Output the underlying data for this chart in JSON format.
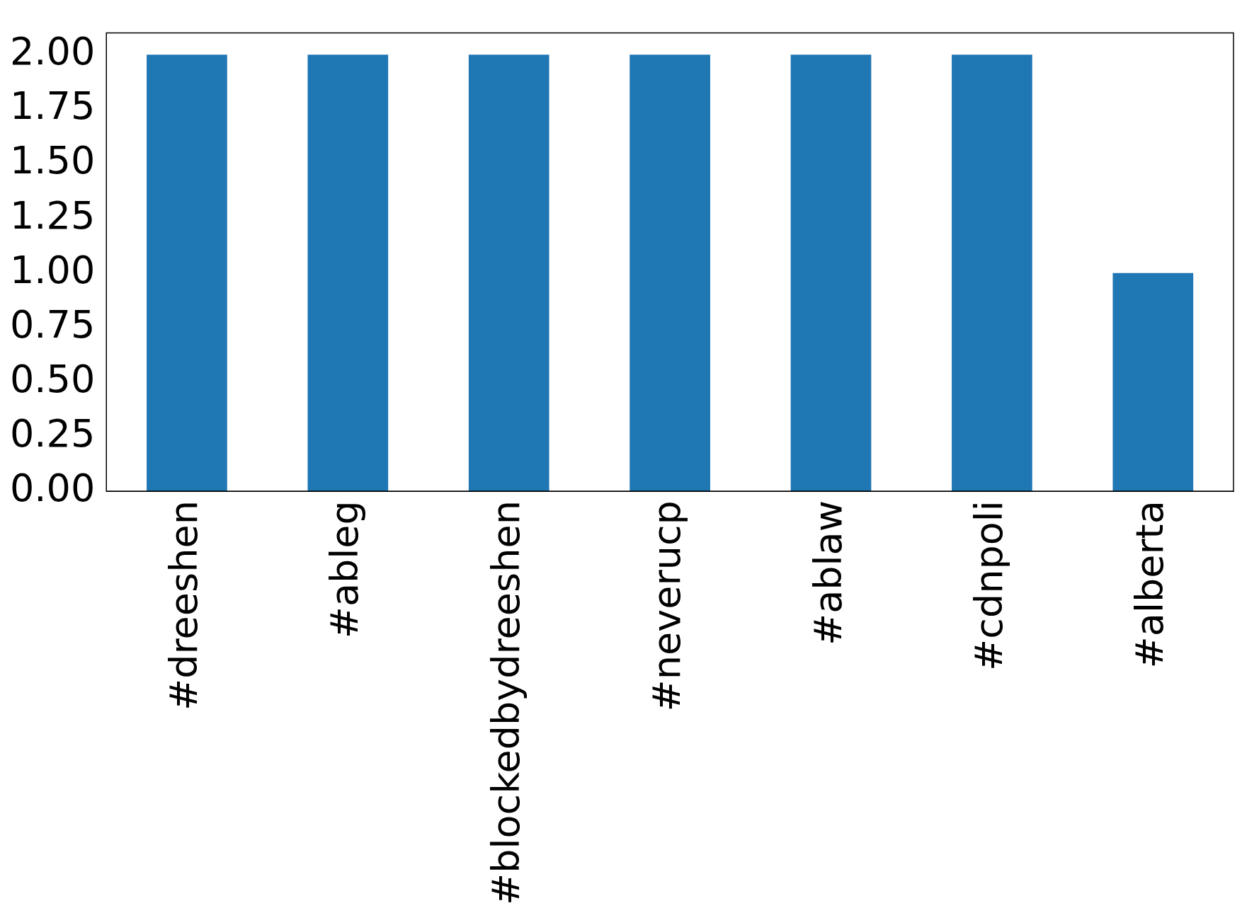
{
  "chart_data": {
    "type": "bar",
    "categories": [
      "#dreeshen",
      "#ableg",
      "#blockedbydreeshen",
      "#neverucp",
      "#ablaw",
      "#cdnpoli",
      "#alberta"
    ],
    "values": [
      2,
      2,
      2,
      2,
      2,
      2,
      1
    ],
    "color": "#1f77b4",
    "ylim": [
      0,
      2.1
    ],
    "yticks": [
      {
        "value": 0,
        "label": "0.00"
      },
      {
        "value": 0.25,
        "label": "0.25"
      },
      {
        "value": 0.5,
        "label": "0.50"
      },
      {
        "value": 0.75,
        "label": "0.75"
      },
      {
        "value": 1,
        "label": "1.00"
      },
      {
        "value": 1.25,
        "label": "1.25"
      },
      {
        "value": 1.5,
        "label": "1.50"
      },
      {
        "value": 1.75,
        "label": "1.75"
      },
      {
        "value": 2,
        "label": "2.00"
      }
    ],
    "grid": false,
    "legend": false
  }
}
